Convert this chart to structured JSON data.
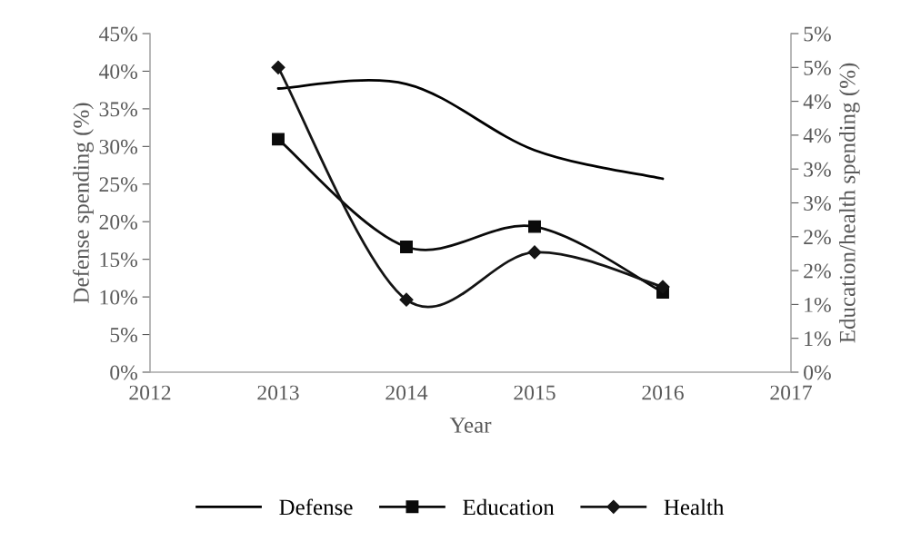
{
  "chart_data": {
    "type": "line",
    "xlabel": "Year",
    "ylabel": "Defense spending (%)",
    "y2label": "Education/health spending (%)",
    "x": [
      2013,
      2014,
      2015,
      2016
    ],
    "series": [
      {
        "name": "Defense",
        "color": "#000000",
        "values": [
          37.7,
          38.3,
          29.5,
          25.7
        ],
        "marker": "none"
      },
      {
        "name": "Education",
        "color": "#0a0a0a",
        "values": [
          3.44,
          1.85,
          2.15,
          1.18
        ],
        "marker": "square",
        "axis": "y2"
      },
      {
        "name": "Health",
        "color": "#141414",
        "values": [
          4.5,
          1.07,
          1.77,
          1.26
        ],
        "marker": "diamond",
        "axis": "y2"
      }
    ],
    "xlim": [
      2012,
      2017
    ],
    "xticks": [
      2012,
      2013,
      2014,
      2015,
      2016,
      2017
    ],
    "ylim": [
      0,
      45
    ],
    "yticks": [
      {
        "value": 0,
        "label": "0%"
      },
      {
        "value": 5,
        "label": "5%"
      },
      {
        "value": 10,
        "label": "10%"
      },
      {
        "value": 15,
        "label": "15%"
      },
      {
        "value": 20,
        "label": "20%"
      },
      {
        "value": 25,
        "label": "25%"
      },
      {
        "value": 30,
        "label": "30%"
      },
      {
        "value": 35,
        "label": "35%"
      },
      {
        "value": 40,
        "label": "40%"
      },
      {
        "value": 45,
        "label": "45%"
      }
    ],
    "y2lim": [
      0,
      5
    ],
    "y2ticks": [
      {
        "value": 0,
        "label": "0%"
      },
      {
        "value": 0.5,
        "label": "1%"
      },
      {
        "value": 1,
        "label": "1%"
      },
      {
        "value": 1.5,
        "label": "2%"
      },
      {
        "value": 2,
        "label": "2%"
      },
      {
        "value": 2.5,
        "label": "3%"
      },
      {
        "value": 3,
        "label": "3%"
      },
      {
        "value": 3.5,
        "label": "4%"
      },
      {
        "value": 4,
        "label": "4%"
      },
      {
        "value": 4.5,
        "label": "5%"
      },
      {
        "value": 5,
        "label": "5%"
      }
    ],
    "grid": false,
    "legend": "bottom",
    "line_style": "solid"
  }
}
